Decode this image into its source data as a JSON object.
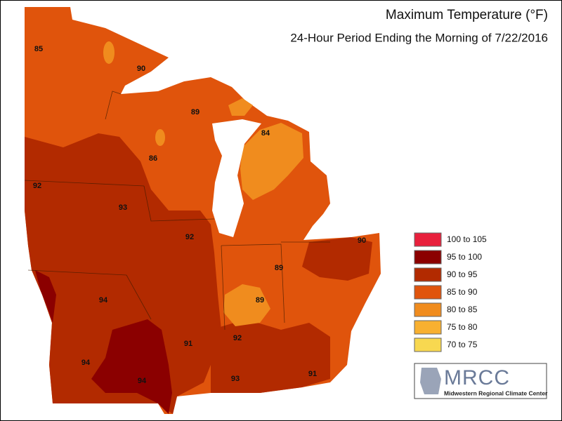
{
  "header": {
    "title": "Maximum Temperature (°F)",
    "subtitle": "24-Hour Period Ending the Morning of 7/22/2016"
  },
  "legend": [
    {
      "label": "100 to 105",
      "color": "#e8203c"
    },
    {
      "label": "95 to 100",
      "color": "#8b0000"
    },
    {
      "label": "90 to 95",
      "color": "#b22a00"
    },
    {
      "label": "85 to 90",
      "color": "#e0540c"
    },
    {
      "label": "80 to 85",
      "color": "#f08c1e"
    },
    {
      "label": "75 to 80",
      "color": "#f8b030"
    },
    {
      "label": "70 to 75",
      "color": "#f8d850"
    }
  ],
  "station_values": [
    85,
    90,
    89,
    84,
    86,
    92,
    93,
    92,
    90,
    89,
    89,
    94,
    92,
    91,
    94,
    94,
    93,
    91
  ],
  "logo": {
    "name": "MRCC",
    "full_name": "Midwestern Regional Climate Center"
  }
}
